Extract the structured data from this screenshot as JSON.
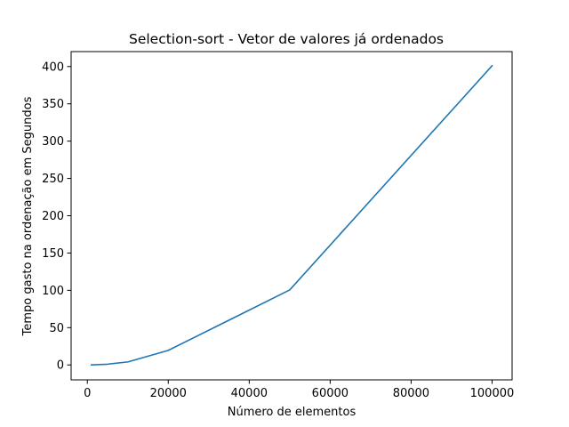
{
  "chart_data": {
    "type": "line",
    "title": "Selection-sort - Vetor de valores já ordenados",
    "xlabel": "Número de elementos",
    "ylabel": "Tempo gasto na ordenação  em Segundos",
    "xlim": [
      -4000,
      104950
    ],
    "ylim": [
      -20,
      420
    ],
    "xticks": [
      0,
      20000,
      40000,
      60000,
      80000,
      100000
    ],
    "yticks": [
      0,
      50,
      100,
      150,
      200,
      250,
      300,
      350,
      400
    ],
    "grid": false,
    "legend": "none",
    "series": [
      {
        "color": "#1f77b4",
        "x": [
          1000,
          5000,
          10000,
          20000,
          50000,
          100000
        ],
        "y": [
          0.04,
          1.0,
          4.0,
          19.5,
          100.5,
          401
        ]
      }
    ]
  }
}
